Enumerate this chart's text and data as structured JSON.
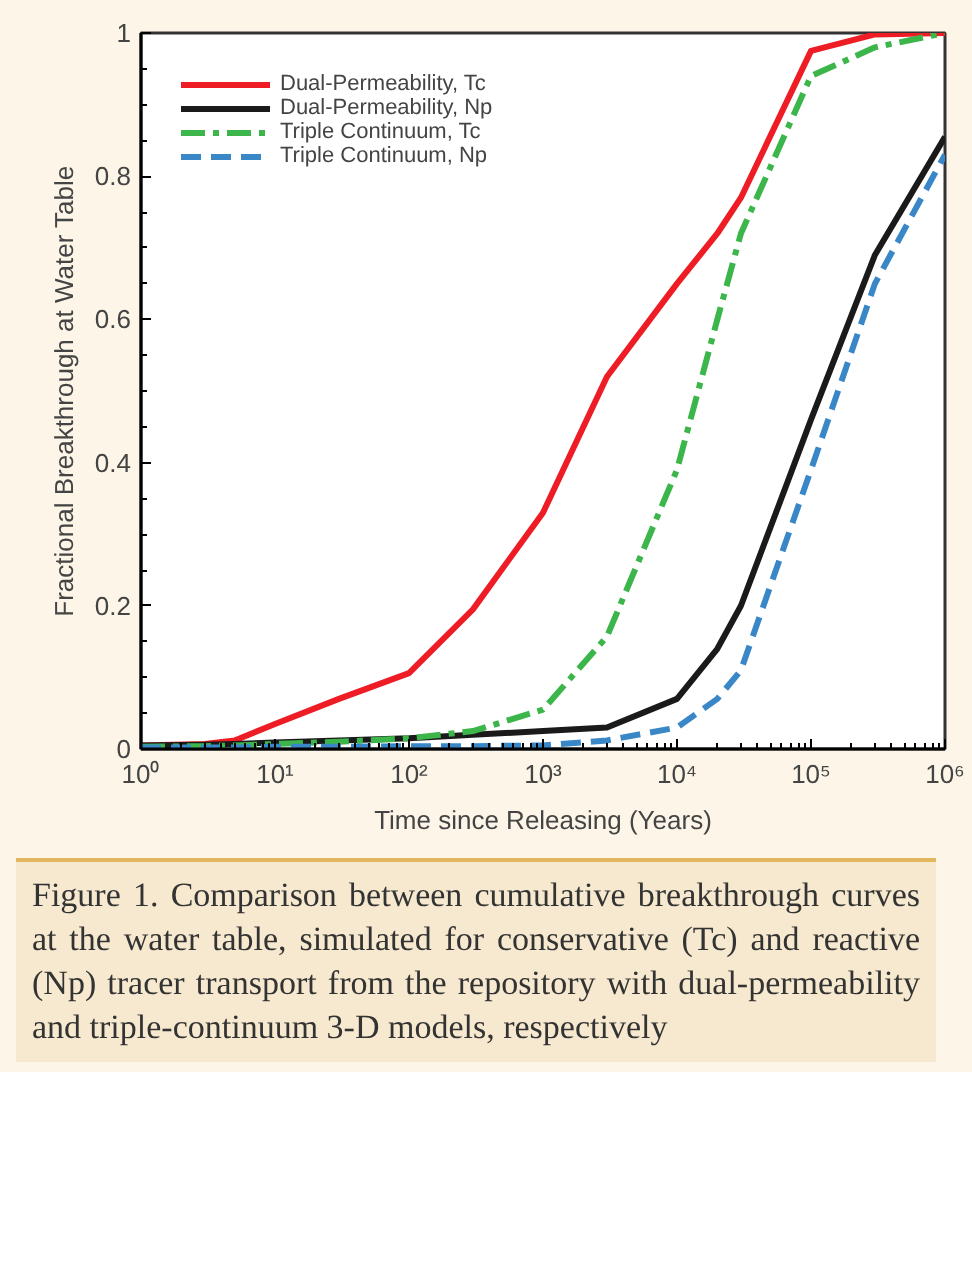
{
  "chart_data": {
    "type": "line",
    "xlabel": "Time since Releasing (Years)",
    "ylabel": "Fractional Breakthrough at Water Table",
    "log": "x",
    "xlim": [
      1,
      1000000
    ],
    "ylim": [
      0,
      1
    ],
    "xticks": [
      {
        "value": 1,
        "label": "10⁰"
      },
      {
        "value": 10,
        "label": "10¹"
      },
      {
        "value": 100,
        "label": "10²"
      },
      {
        "value": 1000,
        "label": "10³"
      },
      {
        "value": 10000,
        "label": "10⁴"
      },
      {
        "value": 100000,
        "label": "10⁵"
      },
      {
        "value": 1000000,
        "label": "10⁶"
      }
    ],
    "yticks": [
      0,
      0.2,
      0.4,
      0.6,
      0.8,
      1
    ],
    "grid": false,
    "legend": "top left",
    "x": [
      1,
      3,
      5,
      10,
      30,
      100,
      300,
      1000,
      3000,
      10000,
      20000,
      30000,
      100000,
      300000,
      1000000
    ],
    "series": [
      {
        "name": "Dual-Permeability, Tc",
        "color": "#ee1c25",
        "line_style": "solid",
        "values": [
          0.005,
          0.007,
          0.012,
          0.035,
          0.07,
          0.106,
          0.195,
          0.33,
          0.52,
          0.65,
          0.72,
          0.77,
          0.975,
          0.998,
          1.0
        ]
      },
      {
        "name": "Dual-Permeability, Np",
        "color": "#1a1a1a",
        "line_style": "solid",
        "values": [
          0.005,
          0.006,
          0.007,
          0.009,
          0.012,
          0.015,
          0.02,
          0.025,
          0.03,
          0.07,
          0.14,
          0.2,
          0.46,
          0.69,
          0.855
        ]
      },
      {
        "name": "Triple Continuum, Tc",
        "color": "#3cb54a",
        "line_style": "dashdot",
        "values": [
          0.003,
          0.004,
          0.005,
          0.007,
          0.01,
          0.015,
          0.025,
          0.055,
          0.157,
          0.39,
          0.6,
          0.72,
          0.94,
          0.98,
          1.0
        ]
      },
      {
        "name": "Triple Continuum, Np",
        "color": "#3a87c8",
        "line_style": "dashed",
        "values": [
          0.002,
          0.002,
          0.002,
          0.003,
          0.003,
          0.004,
          0.004,
          0.005,
          0.012,
          0.03,
          0.07,
          0.11,
          0.39,
          0.65,
          0.83
        ]
      }
    ],
    "annotations": [
      "Figure 1. Comparison between cumulative breakthrough curves at the water table, simulated for conservative (Tc) and reactive (Np) tracer transport from the repository with dual-permeability and triple-continuum 3-D models, respectively"
    ]
  }
}
